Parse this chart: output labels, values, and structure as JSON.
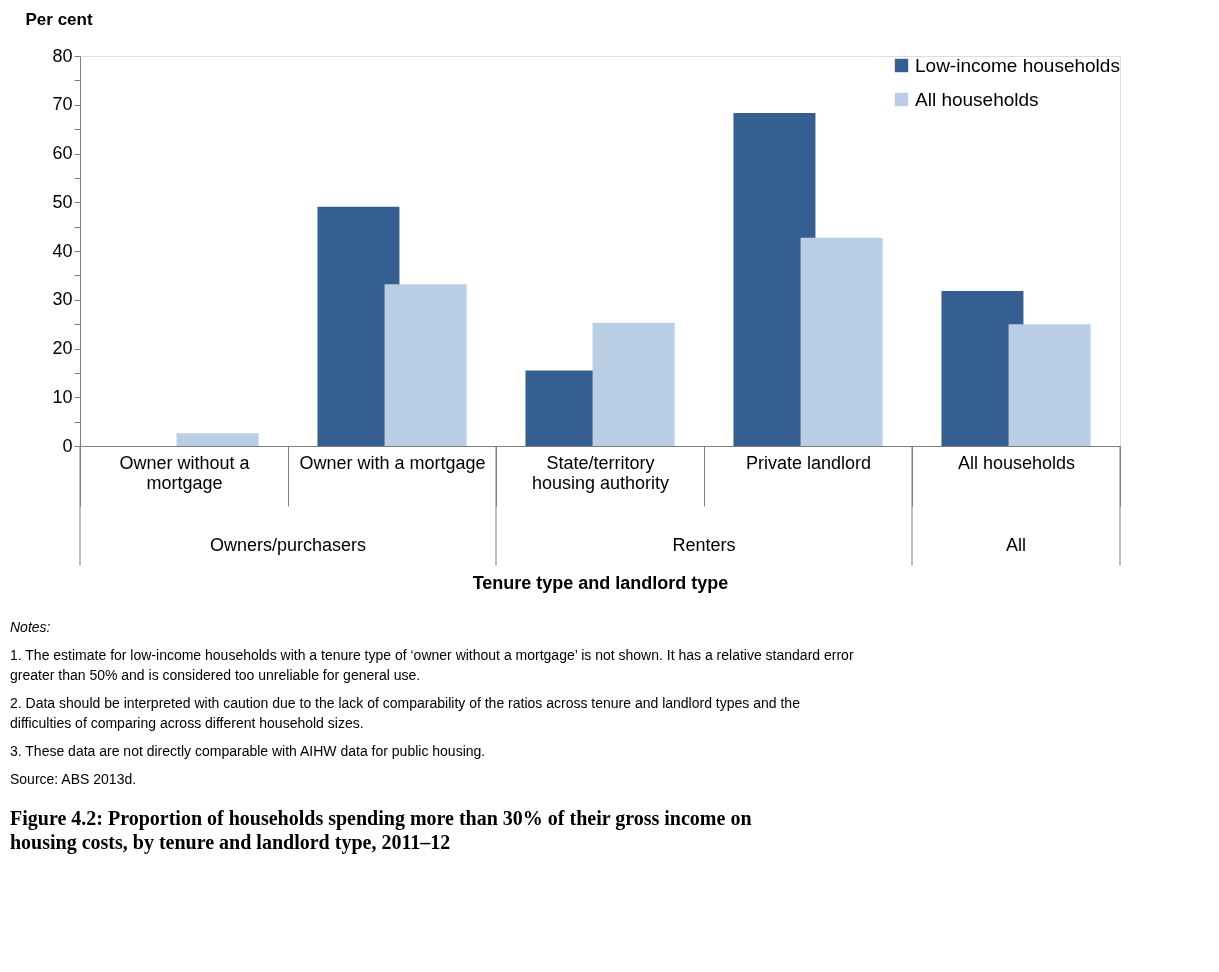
{
  "chart_data": {
    "type": "bar",
    "title": "Figure 4.2: Proportion of households spending more than 30% of their gross income on housing costs, by tenure and landlord type, 2011–12",
    "xlabel": "Tenure type and landlord type",
    "ylabel": "Per cent",
    "categories": [
      "Owner without a mortgage",
      "Owner with a mortgage",
      "State/territory housing authority",
      "Private landlord",
      "All households"
    ],
    "series": [
      {
        "name": "Low-income households",
        "color": "#365f91",
        "values": [
          null,
          49.1,
          15.5,
          68.3,
          31.8
        ]
      },
      {
        "name": "All households",
        "color": "#b9cde5",
        "values": [
          2.6,
          33.2,
          25.3,
          42.7,
          25.0
        ]
      }
    ],
    "ylim": [
      0,
      80
    ],
    "yticks": [
      0,
      {
        "value": 5,
        "label": null
      },
      10,
      {
        "value": 15,
        "label": null
      },
      20,
      {
        "value": 25,
        "label": null
      },
      30,
      {
        "value": 35,
        "label": null
      },
      40,
      {
        "value": 45,
        "label": null
      },
      50,
      {
        "value": 55,
        "label": null
      },
      60,
      {
        "value": 65,
        "label": null
      },
      70,
      {
        "value": 75,
        "label": null
      },
      80
    ],
    "grid": false,
    "legend": "top right",
    "annotations": [
      "Owners/purchasers",
      "Renters",
      "All",
      "Notes:",
      "1.   The estimate for low-income households with a tenure type of ‘owner without a mortgage’ is not shown. It has a relative standard error greater than 50% and is considered too unreliable for general use.",
      "2.   Data should be interpreted with caution due to the lack of comparability of the ratios across tenure and landlord types and the difficulties of comparing across different household sizes.",
      "3.   These data are not directly comparable with AIHW data for public housing.",
      "Source: ABS 2013d."
    ]
  }
}
